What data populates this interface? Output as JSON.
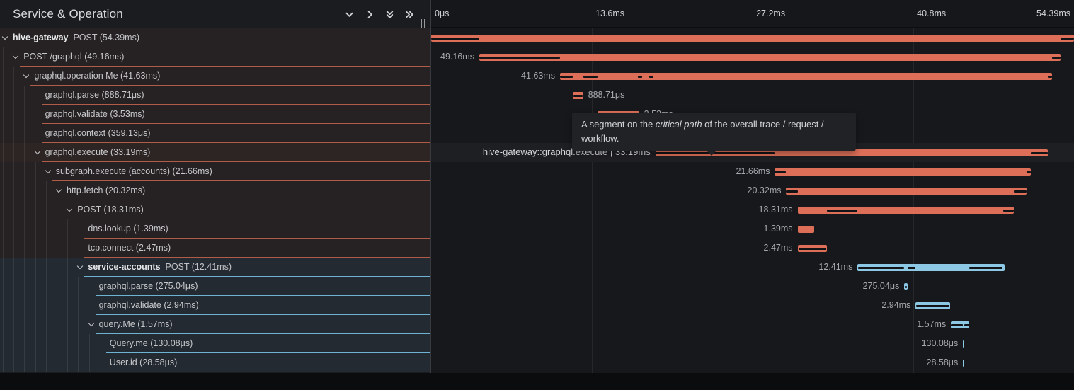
{
  "header": {
    "title": "Service & Operation",
    "icons": [
      {
        "name": "chevron-down-icon",
        "action": "expand-one-level"
      },
      {
        "name": "chevron-right-icon",
        "action": "collapse-one-level"
      },
      {
        "name": "chevrons-down-icon",
        "action": "expand-all"
      },
      {
        "name": "chevrons-right-icon",
        "action": "collapse-all"
      }
    ]
  },
  "axis": {
    "total_ms": 54.39,
    "ticks": [
      {
        "label": "0μs",
        "ms": 0,
        "align": "left"
      },
      {
        "label": "13.6ms",
        "ms": 13.6,
        "align": "left"
      },
      {
        "label": "27.2ms",
        "ms": 27.2,
        "align": "left"
      },
      {
        "label": "40.8ms",
        "ms": 40.8,
        "align": "left"
      },
      {
        "label": "54.39ms",
        "ms": 54.39,
        "align": "right"
      }
    ]
  },
  "tooltip": {
    "text_pre": "A segment on the ",
    "text_italic": "critical path",
    "text_post": " of the overall trace / request /",
    "line2": "workflow."
  },
  "spans": [
    {
      "depth": 0,
      "service": "hive-gateway",
      "name": "POST (54.39ms)",
      "expandable": true,
      "color": "salmon",
      "start_ms": 0,
      "dur_ms": 54.39,
      "bar_label": "",
      "label_side": "none",
      "critical": [
        [
          0,
          4.07
        ],
        [
          53.23,
          54.39
        ]
      ],
      "hovered": false
    },
    {
      "depth": 1,
      "service": null,
      "name": "POST /graphql (49.16ms)",
      "expandable": true,
      "color": "salmon",
      "start_ms": 4.07,
      "dur_ms": 49.16,
      "bar_label": "49.16ms",
      "label_side": "left",
      "critical": [
        [
          4.07,
          10.9
        ],
        [
          52.53,
          53.23
        ]
      ],
      "hovered": false
    },
    {
      "depth": 2,
      "service": null,
      "name": "graphql.operation Me (41.63ms)",
      "expandable": true,
      "color": "salmon",
      "start_ms": 10.9,
      "dur_ms": 41.63,
      "bar_label": "41.63ms",
      "label_side": "left",
      "critical": [
        [
          10.9,
          11.97
        ],
        [
          12.86,
          14.06
        ],
        [
          17.5,
          17.88
        ],
        [
          18.42,
          18.79
        ],
        [
          52.16,
          52.53
        ]
      ],
      "hovered": false
    },
    {
      "depth": 3,
      "service": null,
      "name": "graphql.parse (888.71μs)",
      "expandable": false,
      "color": "salmon",
      "start_ms": 11.97,
      "dur_ms": 0.889,
      "bar_label": "888.71μs",
      "label_side": "right",
      "critical": [
        [
          12.02,
          12.82
        ]
      ],
      "hovered": false
    },
    {
      "depth": 3,
      "service": null,
      "name": "graphql.validate (3.53ms)",
      "expandable": false,
      "color": "salmon",
      "start_ms": 14.06,
      "dur_ms": 3.53,
      "bar_label": "3.53ms",
      "label_side": "right",
      "critical": [
        [
          14.11,
          17.54
        ]
      ],
      "hovered": false
    },
    {
      "depth": 3,
      "service": null,
      "name": "graphql.context (359.13μs)",
      "expandable": false,
      "color": "salmon",
      "start_ms": 17.66,
      "dur_ms": 0.359,
      "bar_label": "359.13μs",
      "label_side": "right",
      "critical": [
        [
          17.7,
          17.98
        ]
      ],
      "hovered": false
    },
    {
      "depth": 3,
      "service": null,
      "name": "graphql.execute (33.19ms)",
      "expandable": true,
      "color": "salmon",
      "start_ms": 18.97,
      "dur_ms": 33.19,
      "bar_label": "hive-gateway::graphql.execute | 33.19ms",
      "label_side": "left",
      "critical": [
        [
          18.97,
          29.08
        ],
        [
          50.74,
          52.16
        ]
      ],
      "hovered": true
    },
    {
      "depth": 4,
      "service": null,
      "name": "subgraph.execute (accounts) (21.66ms)",
      "expandable": true,
      "color": "salmon",
      "start_ms": 29.08,
      "dur_ms": 21.66,
      "bar_label": "21.66ms",
      "label_side": "left",
      "critical": [
        [
          29.08,
          30.04
        ],
        [
          50.36,
          50.74
        ]
      ],
      "hovered": false
    },
    {
      "depth": 5,
      "service": null,
      "name": "http.fetch (20.32ms)",
      "expandable": true,
      "color": "salmon",
      "start_ms": 30.04,
      "dur_ms": 20.32,
      "bar_label": "20.32ms",
      "label_side": "left",
      "critical": [
        [
          30.04,
          31.0
        ],
        [
          49.31,
          50.36
        ]
      ],
      "hovered": false
    },
    {
      "depth": 6,
      "service": null,
      "name": "POST (18.31ms)",
      "expandable": true,
      "color": "salmon",
      "start_ms": 31.0,
      "dur_ms": 18.31,
      "bar_label": "18.31ms",
      "label_side": "left",
      "critical": [
        [
          33.47,
          36.08
        ],
        [
          48.41,
          49.31
        ]
      ],
      "hovered": false
    },
    {
      "depth": 7,
      "service": null,
      "name": "dns.lookup (1.39ms)",
      "expandable": false,
      "color": "salmon",
      "start_ms": 31.0,
      "dur_ms": 1.39,
      "bar_label": "1.39ms",
      "label_side": "left",
      "critical": [],
      "hovered": false
    },
    {
      "depth": 7,
      "service": null,
      "name": "tcp.connect (2.47ms)",
      "expandable": false,
      "color": "salmon",
      "start_ms": 31.0,
      "dur_ms": 2.47,
      "bar_label": "2.47ms",
      "label_side": "left",
      "critical": [
        [
          31.06,
          33.42
        ]
      ],
      "hovered": false
    },
    {
      "depth": 7,
      "service": "service-accounts",
      "name": "POST (12.41ms)",
      "expandable": true,
      "color": "blue",
      "start_ms": 36.08,
      "dur_ms": 12.41,
      "bar_label": "12.41ms",
      "label_side": "left",
      "critical": [
        [
          36.14,
          40.03
        ],
        [
          40.31,
          40.99
        ],
        [
          45.55,
          48.35
        ]
      ],
      "hovered": false
    },
    {
      "depth": 8,
      "service": null,
      "name": "graphql.parse (275.04μs)",
      "expandable": false,
      "color": "blue",
      "start_ms": 40.03,
      "dur_ms": 0.275,
      "bar_label": "275.04μs",
      "label_side": "left",
      "critical": [
        [
          40.08,
          40.25
        ]
      ],
      "hovered": false
    },
    {
      "depth": 8,
      "service": null,
      "name": "graphql.validate (2.94ms)",
      "expandable": false,
      "color": "blue",
      "start_ms": 40.99,
      "dur_ms": 2.94,
      "bar_label": "2.94ms",
      "label_side": "left",
      "critical": [
        [
          41.05,
          43.87
        ]
      ],
      "hovered": false
    },
    {
      "depth": 8,
      "service": null,
      "name": "query.Me (1.57ms)",
      "expandable": true,
      "color": "blue",
      "start_ms": 43.98,
      "dur_ms": 1.57,
      "bar_label": "1.57ms",
      "label_side": "left",
      "critical": [
        [
          43.98,
          45.0
        ],
        [
          45.13,
          45.55
        ]
      ],
      "hovered": false
    },
    {
      "depth": 9,
      "service": null,
      "name": "Query.me (130.08μs)",
      "expandable": false,
      "color": "blue",
      "start_ms": 45.0,
      "dur_ms": 0.13,
      "bar_label": "130.08μs",
      "label_side": "left",
      "critical": [],
      "hovered": false
    },
    {
      "depth": 9,
      "service": null,
      "name": "User.id (28.58μs)",
      "expandable": false,
      "color": "blue",
      "start_ms": 45.0,
      "dur_ms": 0.0286,
      "bar_label": "28.58μs",
      "label_side": "left",
      "critical": [],
      "hovered": false
    }
  ],
  "colors": {
    "salmon_bar": "#dd6f58",
    "blue_bar": "#8cc8e3",
    "critical_path": "#121316",
    "salmon_underline": "#b05c49",
    "blue_underline": "#6fb3d2",
    "salmon_row_bg": "#262122",
    "blue_row_bg": "#232a31",
    "hover_row_bg": "#2c2523",
    "timeline_bg": "#17181c",
    "timeline_hover_bg": "#1e1f23"
  }
}
